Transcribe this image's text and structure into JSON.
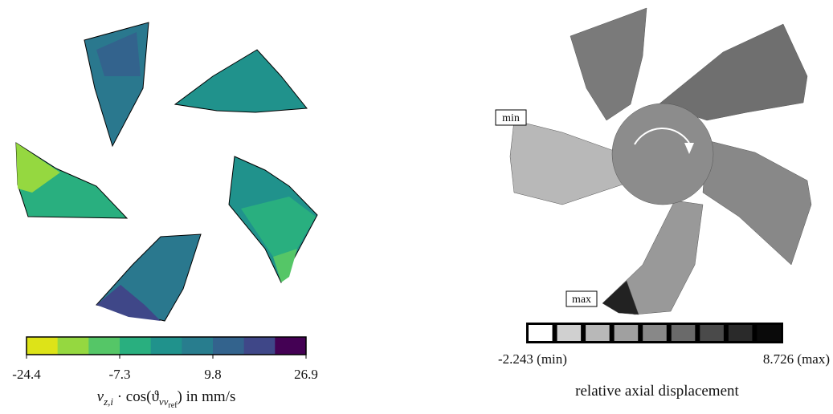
{
  "left_panel": {
    "colorbar": {
      "colors": [
        "#dde318",
        "#95d840",
        "#55c667",
        "#29af7f",
        "#20928c",
        "#287d8e",
        "#33638d",
        "#3f4788",
        "#440154"
      ],
      "ticks": [
        -24.4,
        -7.3,
        9.8,
        26.9
      ]
    },
    "label": {
      "symbol": "v",
      "subscript": "z,i",
      "middle": " · cos(ϑ",
      "sub2": "vv",
      "sub3": "ref",
      "end": ") in mm/s"
    }
  },
  "right_panel": {
    "annotations": {
      "min": "min",
      "max": "max"
    },
    "colorbar": {
      "colors": [
        "#ffffff",
        "#d0d0d0",
        "#b8b8b8",
        "#a0a0a0",
        "#888888",
        "#6a6a6a",
        "#4a4a4a",
        "#2a2a2a",
        "#0a0a0a"
      ],
      "min_label": "-2.243 (min)",
      "max_label": "8.726 (max)"
    },
    "label": "relative axial displacement"
  }
}
